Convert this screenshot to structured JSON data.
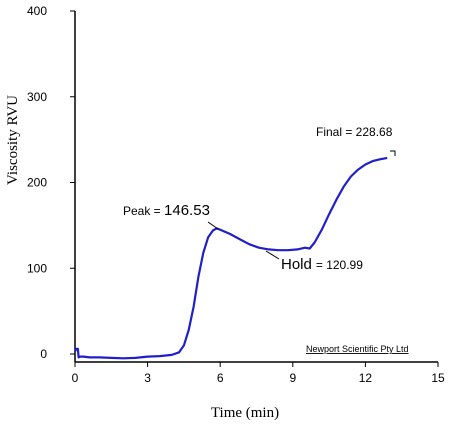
{
  "chart_data": {
    "type": "line",
    "xlabel": "Time (min)",
    "ylabel": "Viscosity RVU",
    "xlim": [
      0,
      15
    ],
    "ylim": [
      0,
      400
    ],
    "xticks": [
      0,
      3,
      6,
      9,
      12,
      15
    ],
    "yticks": [
      0,
      100,
      200,
      300,
      400
    ],
    "grid": false,
    "series": [
      {
        "color": "#1f1fcc",
        "points": [
          [
            0.0,
            3
          ],
          [
            0.05,
            6
          ],
          [
            0.12,
            6
          ],
          [
            0.15,
            -4
          ],
          [
            0.2,
            -3
          ],
          [
            0.35,
            -3
          ],
          [
            0.6,
            -4
          ],
          [
            1.0,
            -4
          ],
          [
            1.5,
            -4.5
          ],
          [
            2.0,
            -5
          ],
          [
            2.5,
            -4.5
          ],
          [
            3.0,
            -3
          ],
          [
            3.5,
            -2.5
          ],
          [
            4.0,
            -1
          ],
          [
            4.3,
            2
          ],
          [
            4.5,
            10
          ],
          [
            4.7,
            28
          ],
          [
            4.9,
            55
          ],
          [
            5.1,
            90
          ],
          [
            5.3,
            118
          ],
          [
            5.5,
            136
          ],
          [
            5.7,
            144
          ],
          [
            5.85,
            146.53
          ],
          [
            6.0,
            145
          ],
          [
            6.4,
            140
          ],
          [
            6.8,
            134
          ],
          [
            7.2,
            128
          ],
          [
            7.6,
            124
          ],
          [
            8.0,
            122
          ],
          [
            8.4,
            121
          ],
          [
            8.8,
            121
          ],
          [
            9.2,
            122
          ],
          [
            9.5,
            124
          ],
          [
            9.7,
            123
          ],
          [
            9.9,
            130
          ],
          [
            10.2,
            145
          ],
          [
            10.5,
            163
          ],
          [
            10.8,
            180
          ],
          [
            11.1,
            195
          ],
          [
            11.4,
            207
          ],
          [
            11.7,
            215
          ],
          [
            12.0,
            221
          ],
          [
            12.3,
            225
          ],
          [
            12.6,
            227
          ],
          [
            12.9,
            228.68
          ]
        ]
      }
    ],
    "annotations": [
      {
        "label": "Peak = ",
        "value": "146.53"
      },
      {
        "label": "Hold",
        "value": "=  120.99"
      },
      {
        "label": "Final = 228.68",
        "value": ""
      }
    ],
    "credit": "Newport Scientific Pty Ltd"
  }
}
